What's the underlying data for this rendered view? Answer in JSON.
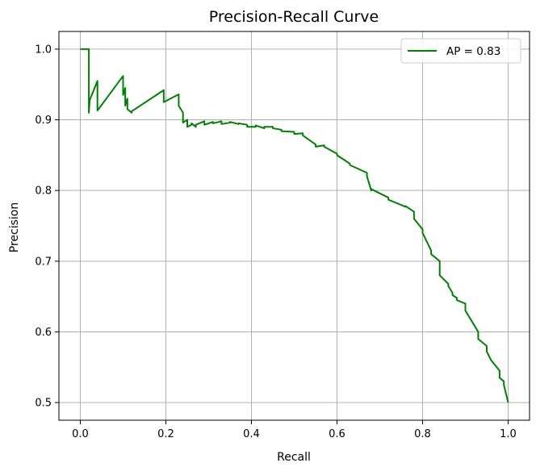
{
  "chart_data": {
    "type": "line",
    "title": "Precision-Recall Curve",
    "xlabel": "Recall",
    "ylabel": "Precision",
    "xlim": [
      -0.05,
      1.05
    ],
    "ylim": [
      0.475,
      1.025
    ],
    "x_ticks": [
      0.0,
      0.2,
      0.4,
      0.6,
      0.8,
      1.0
    ],
    "y_ticks": [
      0.5,
      0.6,
      0.7,
      0.8,
      0.9,
      1.0
    ],
    "x_tick_labels": [
      "0.0",
      "0.2",
      "0.4",
      "0.6",
      "0.8",
      "1.0"
    ],
    "y_tick_labels": [
      "0.5",
      "0.6",
      "0.7",
      "0.8",
      "0.9",
      "1.0"
    ],
    "grid": true,
    "legend_position": "top-right",
    "series": [
      {
        "name": "AP = 0.83",
        "color": "#008000",
        "x": [
          0.0,
          0.02,
          0.02,
          0.022,
          0.04,
          0.04,
          0.1,
          0.1,
          0.105,
          0.105,
          0.11,
          0.11,
          0.12,
          0.12,
          0.195,
          0.195,
          0.23,
          0.23,
          0.24,
          0.24,
          0.25,
          0.25,
          0.26,
          0.26,
          0.27,
          0.27,
          0.29,
          0.29,
          0.31,
          0.31,
          0.33,
          0.33,
          0.35,
          0.35,
          0.37,
          0.37,
          0.39,
          0.39,
          0.41,
          0.41,
          0.43,
          0.43,
          0.45,
          0.45,
          0.47,
          0.47,
          0.5,
          0.5,
          0.52,
          0.52,
          0.55,
          0.55,
          0.57,
          0.57,
          0.6,
          0.6,
          0.63,
          0.63,
          0.67,
          0.67,
          0.68,
          0.68,
          0.72,
          0.72,
          0.76,
          0.76,
          0.78,
          0.78,
          0.8,
          0.8,
          0.82,
          0.82,
          0.84,
          0.84,
          0.86,
          0.86,
          0.87,
          0.87,
          0.88,
          0.88,
          0.9,
          0.9,
          0.93,
          0.93,
          0.95,
          0.95,
          0.96,
          0.96,
          0.98,
          0.98,
          0.99,
          0.99,
          1.0
        ],
        "y": [
          1.0,
          1.0,
          0.91,
          0.928,
          0.955,
          0.913,
          0.962,
          0.935,
          0.945,
          0.92,
          0.93,
          0.915,
          0.91,
          0.912,
          0.942,
          0.925,
          0.936,
          0.92,
          0.91,
          0.896,
          0.9,
          0.89,
          0.893,
          0.895,
          0.89,
          0.893,
          0.898,
          0.893,
          0.897,
          0.895,
          0.898,
          0.894,
          0.896,
          0.897,
          0.894,
          0.895,
          0.893,
          0.89,
          0.89,
          0.892,
          0.888,
          0.89,
          0.89,
          0.888,
          0.886,
          0.884,
          0.883,
          0.88,
          0.881,
          0.878,
          0.865,
          0.862,
          0.864,
          0.862,
          0.852,
          0.85,
          0.838,
          0.836,
          0.825,
          0.82,
          0.8,
          0.802,
          0.79,
          0.787,
          0.777,
          0.778,
          0.77,
          0.76,
          0.745,
          0.74,
          0.715,
          0.71,
          0.7,
          0.68,
          0.668,
          0.665,
          0.655,
          0.652,
          0.648,
          0.645,
          0.64,
          0.63,
          0.6,
          0.59,
          0.58,
          0.572,
          0.56,
          0.56,
          0.545,
          0.535,
          0.53,
          0.525,
          0.5
        ]
      }
    ]
  }
}
